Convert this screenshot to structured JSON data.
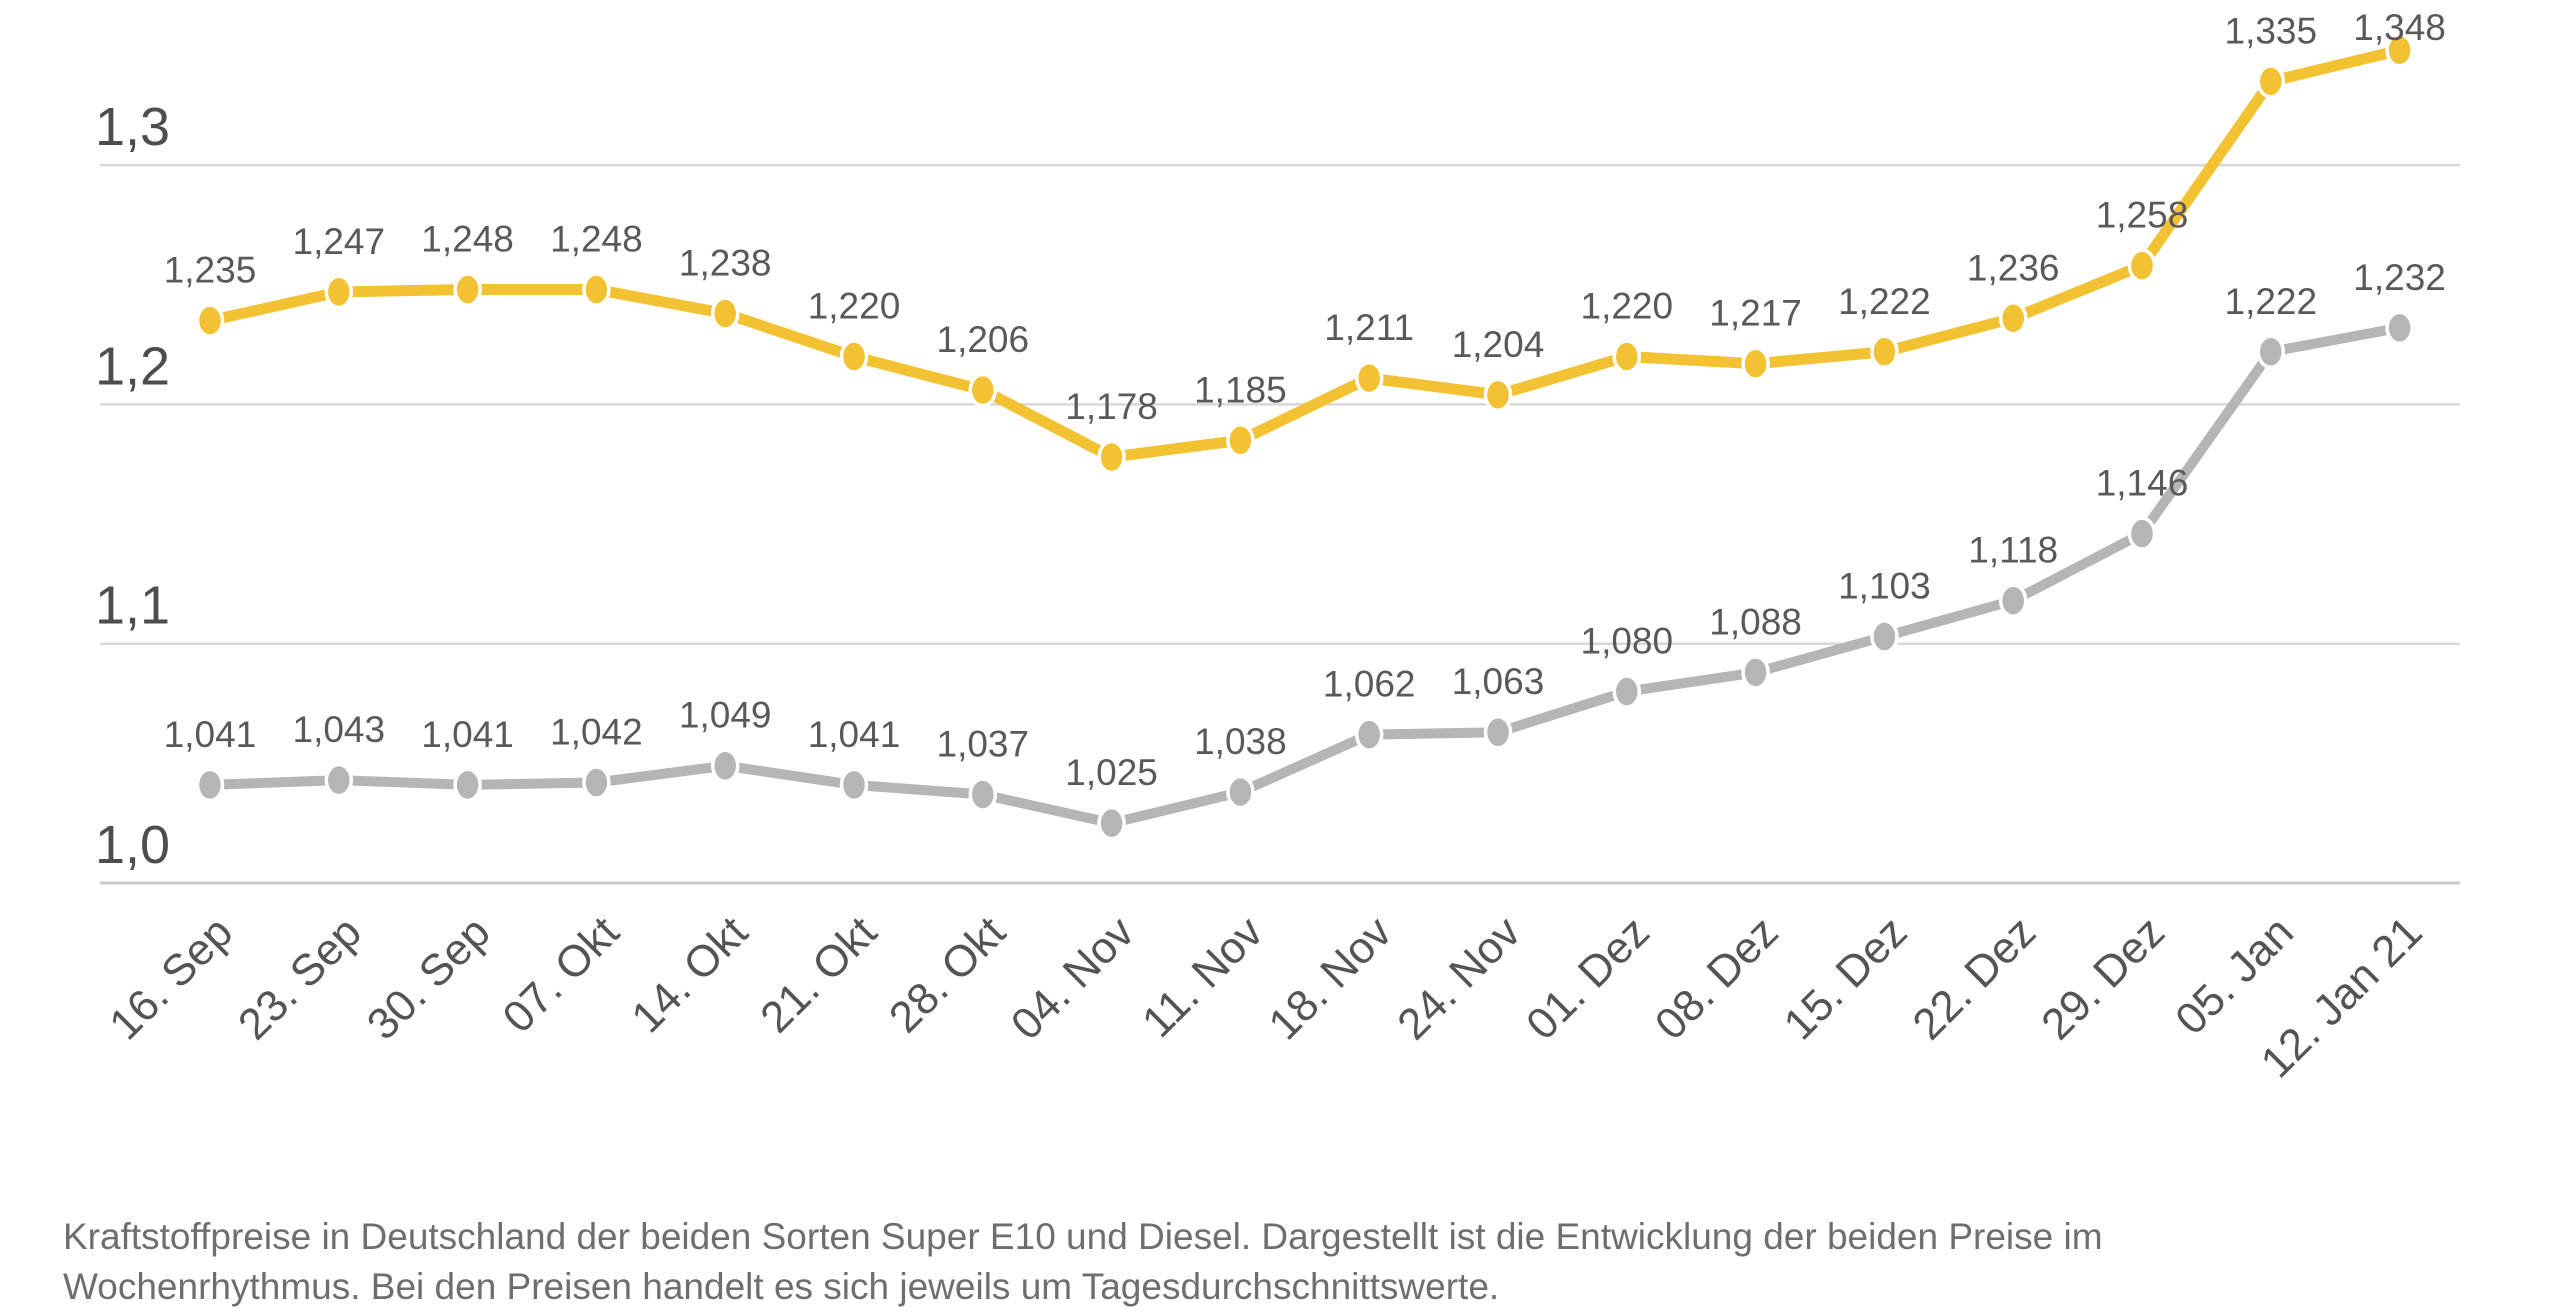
{
  "chart_data": {
    "type": "line",
    "title": "",
    "categories": [
      "16. Sep",
      "23. Sep",
      "30. Sep",
      "07. Okt",
      "14. Okt",
      "21. Okt",
      "28. Okt",
      "04. Nov",
      "11. Nov",
      "18. Nov",
      "24. Nov",
      "01. Dez",
      "08. Dez",
      "15. Dez",
      "22. Dez",
      "29. Dez",
      "05. Jan",
      "12. Jan 21"
    ],
    "series": [
      {
        "name": "Super E10",
        "color": "#F2C233",
        "values": [
          1.235,
          1.247,
          1.248,
          1.248,
          1.238,
          1.22,
          1.206,
          1.178,
          1.185,
          1.211,
          1.204,
          1.22,
          1.217,
          1.222,
          1.236,
          1.258,
          1.335,
          1.348
        ]
      },
      {
        "name": "Diesel",
        "color": "#B5B5B5",
        "values": [
          1.041,
          1.043,
          1.041,
          1.042,
          1.049,
          1.041,
          1.037,
          1.025,
          1.038,
          1.062,
          1.063,
          1.08,
          1.088,
          1.103,
          1.118,
          1.146,
          1.222,
          1.232
        ]
      }
    ],
    "decimal_separator": ",",
    "y_axis": {
      "ticks": [
        1.0,
        1.1,
        1.2,
        1.3
      ],
      "labels": [
        "1,0",
        "1,1",
        "1,2",
        "1,3"
      ],
      "range": [
        0.97,
        1.39
      ]
    },
    "xlabel": "",
    "ylabel": "",
    "grid": true,
    "legend": "none",
    "label_color": "#595959",
    "axis_label_color": "#4d4d4d",
    "gridline_color": "#d8d8d8",
    "baseline_color": "#c9c9c9"
  },
  "caption": {
    "line1": "Kraftstoffpreise in Deutschland der beiden Sorten Super E10 und Diesel. Dargestellt ist die Entwicklung der beiden Preise im",
    "line2": "Wochenrhythmus. Bei den Preisen handelt es sich jeweils um Tagesdurchschnittswerte."
  }
}
